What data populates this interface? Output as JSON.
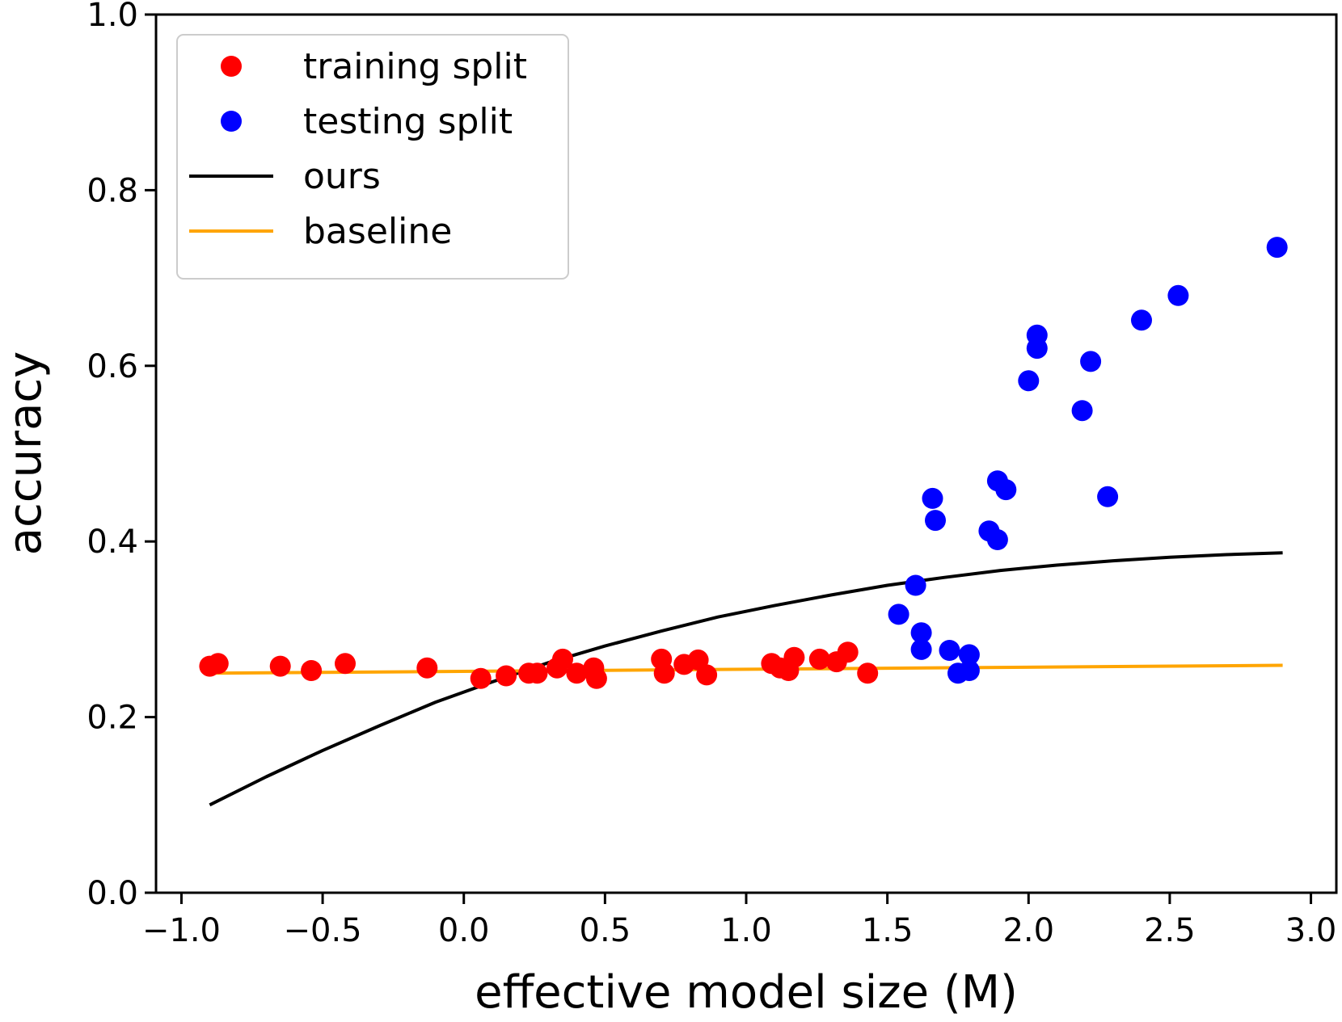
{
  "chart_data": {
    "type": "scatter",
    "xlabel": "effective model size (M)",
    "ylabel": "accuracy",
    "xlim": [
      -1.09,
      3.09
    ],
    "ylim": [
      0.0,
      1.0
    ],
    "xticks": [
      -1.0,
      -0.5,
      0.0,
      0.5,
      1.0,
      1.5,
      2.0,
      2.5,
      3.0
    ],
    "xtick_labels": [
      "−1.0",
      "−0.5",
      "0.0",
      "0.5",
      "1.0",
      "1.5",
      "2.0",
      "2.5",
      "3.0"
    ],
    "yticks": [
      0.0,
      0.2,
      0.4,
      0.6,
      0.8,
      1.0
    ],
    "ytick_labels": [
      "0.0",
      "0.2",
      "0.4",
      "0.6",
      "0.8",
      "1.0"
    ],
    "grid": false,
    "legend_position": "top-left",
    "series": [
      {
        "name": "training split",
        "kind": "scatter",
        "color": "#ff0000",
        "points": [
          [
            -0.9,
            0.258
          ],
          [
            -0.87,
            0.261
          ],
          [
            -0.65,
            0.258
          ],
          [
            -0.54,
            0.253
          ],
          [
            -0.42,
            0.261
          ],
          [
            -0.13,
            0.256
          ],
          [
            0.06,
            0.244
          ],
          [
            0.15,
            0.247
          ],
          [
            0.23,
            0.25
          ],
          [
            0.26,
            0.25
          ],
          [
            0.33,
            0.256
          ],
          [
            0.35,
            0.266
          ],
          [
            0.4,
            0.25
          ],
          [
            0.46,
            0.256
          ],
          [
            0.47,
            0.244
          ],
          [
            0.7,
            0.266
          ],
          [
            0.71,
            0.25
          ],
          [
            0.78,
            0.26
          ],
          [
            0.83,
            0.265
          ],
          [
            0.86,
            0.248
          ],
          [
            1.09,
            0.261
          ],
          [
            1.12,
            0.256
          ],
          [
            1.15,
            0.253
          ],
          [
            1.17,
            0.268
          ],
          [
            1.26,
            0.266
          ],
          [
            1.32,
            0.263
          ],
          [
            1.36,
            0.274
          ],
          [
            1.43,
            0.25
          ]
        ]
      },
      {
        "name": "testing split",
        "kind": "scatter",
        "color": "#0000ff",
        "points": [
          [
            1.54,
            0.317
          ],
          [
            1.6,
            0.35
          ],
          [
            1.62,
            0.296
          ],
          [
            1.62,
            0.277
          ],
          [
            1.66,
            0.449
          ],
          [
            1.67,
            0.424
          ],
          [
            1.72,
            0.276
          ],
          [
            1.75,
            0.25
          ],
          [
            1.79,
            0.271
          ],
          [
            1.79,
            0.253
          ],
          [
            1.86,
            0.412
          ],
          [
            1.89,
            0.469
          ],
          [
            1.89,
            0.402
          ],
          [
            1.92,
            0.459
          ],
          [
            2.0,
            0.583
          ],
          [
            2.03,
            0.635
          ],
          [
            2.03,
            0.62
          ],
          [
            2.19,
            0.549
          ],
          [
            2.22,
            0.605
          ],
          [
            2.28,
            0.451
          ],
          [
            2.4,
            0.652
          ],
          [
            2.53,
            0.68
          ],
          [
            2.88,
            0.735
          ]
        ]
      },
      {
        "name": "ours",
        "kind": "line",
        "color": "#000000",
        "points": [
          [
            -0.9,
            0.1
          ],
          [
            -0.7,
            0.132
          ],
          [
            -0.5,
            0.162
          ],
          [
            -0.3,
            0.19
          ],
          [
            -0.1,
            0.217
          ],
          [
            0.1,
            0.24
          ],
          [
            0.3,
            0.262
          ],
          [
            0.5,
            0.281
          ],
          [
            0.7,
            0.298
          ],
          [
            0.9,
            0.314
          ],
          [
            1.1,
            0.327
          ],
          [
            1.3,
            0.339
          ],
          [
            1.5,
            0.35
          ],
          [
            1.7,
            0.359
          ],
          [
            1.9,
            0.367
          ],
          [
            2.1,
            0.373
          ],
          [
            2.3,
            0.378
          ],
          [
            2.5,
            0.382
          ],
          [
            2.7,
            0.385
          ],
          [
            2.9,
            0.387
          ]
        ]
      },
      {
        "name": "baseline",
        "kind": "line",
        "color": "#ffa500",
        "points": [
          [
            -0.9,
            0.25
          ],
          [
            2.9,
            0.259
          ]
        ]
      }
    ]
  }
}
